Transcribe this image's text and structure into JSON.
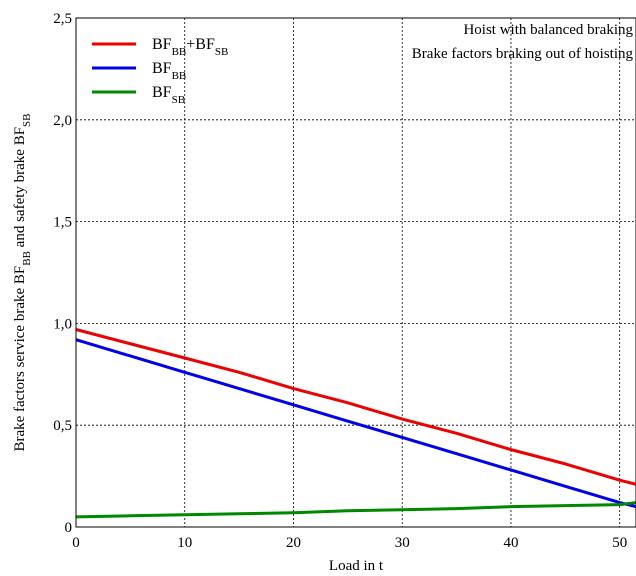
{
  "chart_data": {
    "type": "line",
    "xlabel": "Load in t",
    "ylabel": {
      "parts": [
        {
          "text": "Brake factors service brake BF",
          "sub": false
        },
        {
          "text": "BB",
          "sub": true
        },
        {
          "text": " and safety brake BF",
          "sub": false
        },
        {
          "text": "SB",
          "sub": true
        }
      ]
    },
    "xlim": [
      0,
      51.5
    ],
    "ylim": [
      0,
      2.5
    ],
    "x_ticks": [
      {
        "value": 0,
        "label": "0"
      },
      {
        "value": 10,
        "label": "10"
      },
      {
        "value": 20,
        "label": "20"
      },
      {
        "value": 30,
        "label": "30"
      },
      {
        "value": 40,
        "label": "40"
      },
      {
        "value": 50,
        "label": "50"
      }
    ],
    "y_ticks": [
      {
        "value": 0,
        "label": "0"
      },
      {
        "value": 0.5,
        "label": "0,5"
      },
      {
        "value": 1.0,
        "label": "1,0"
      },
      {
        "value": 1.5,
        "label": "1,5"
      },
      {
        "value": 2.0,
        "label": "2,0"
      },
      {
        "value": 2.5,
        "label": "2,5"
      }
    ],
    "grid": true,
    "legend_position": "top-left",
    "annotations": [
      "Hoist with balanced braking",
      "Brake factors braking out of hoisting"
    ],
    "series": [
      {
        "name": "BF_BB+BF_SB",
        "legend_parts": [
          {
            "text": "BF",
            "sub": false
          },
          {
            "text": "BB",
            "sub": true
          },
          {
            "text": "+BF",
            "sub": false
          },
          {
            "text": "SB",
            "sub": true
          }
        ],
        "color": "#ee0000",
        "x": [
          0,
          5,
          10,
          15,
          20,
          25,
          30,
          35,
          40,
          45,
          50,
          51.5
        ],
        "y": [
          0.97,
          0.9,
          0.83,
          0.76,
          0.68,
          0.61,
          0.53,
          0.46,
          0.38,
          0.31,
          0.23,
          0.21
        ]
      },
      {
        "name": "BF_BB",
        "legend_parts": [
          {
            "text": "BF",
            "sub": false
          },
          {
            "text": "BB",
            "sub": true
          }
        ],
        "color": "#0000ee",
        "x": [
          0,
          5,
          10,
          15,
          20,
          25,
          30,
          35,
          40,
          45,
          50,
          51.5
        ],
        "y": [
          0.92,
          0.84,
          0.76,
          0.68,
          0.6,
          0.52,
          0.44,
          0.36,
          0.28,
          0.2,
          0.12,
          0.1
        ]
      },
      {
        "name": "BF_SB",
        "legend_parts": [
          {
            "text": "BF",
            "sub": false
          },
          {
            "text": "SB",
            "sub": true
          }
        ],
        "color": "#008800",
        "x": [
          0,
          5,
          10,
          15,
          20,
          25,
          30,
          35,
          40,
          45,
          50,
          51.5
        ],
        "y": [
          0.05,
          0.055,
          0.06,
          0.065,
          0.07,
          0.08,
          0.085,
          0.09,
          0.1,
          0.105,
          0.11,
          0.12
        ]
      }
    ]
  }
}
